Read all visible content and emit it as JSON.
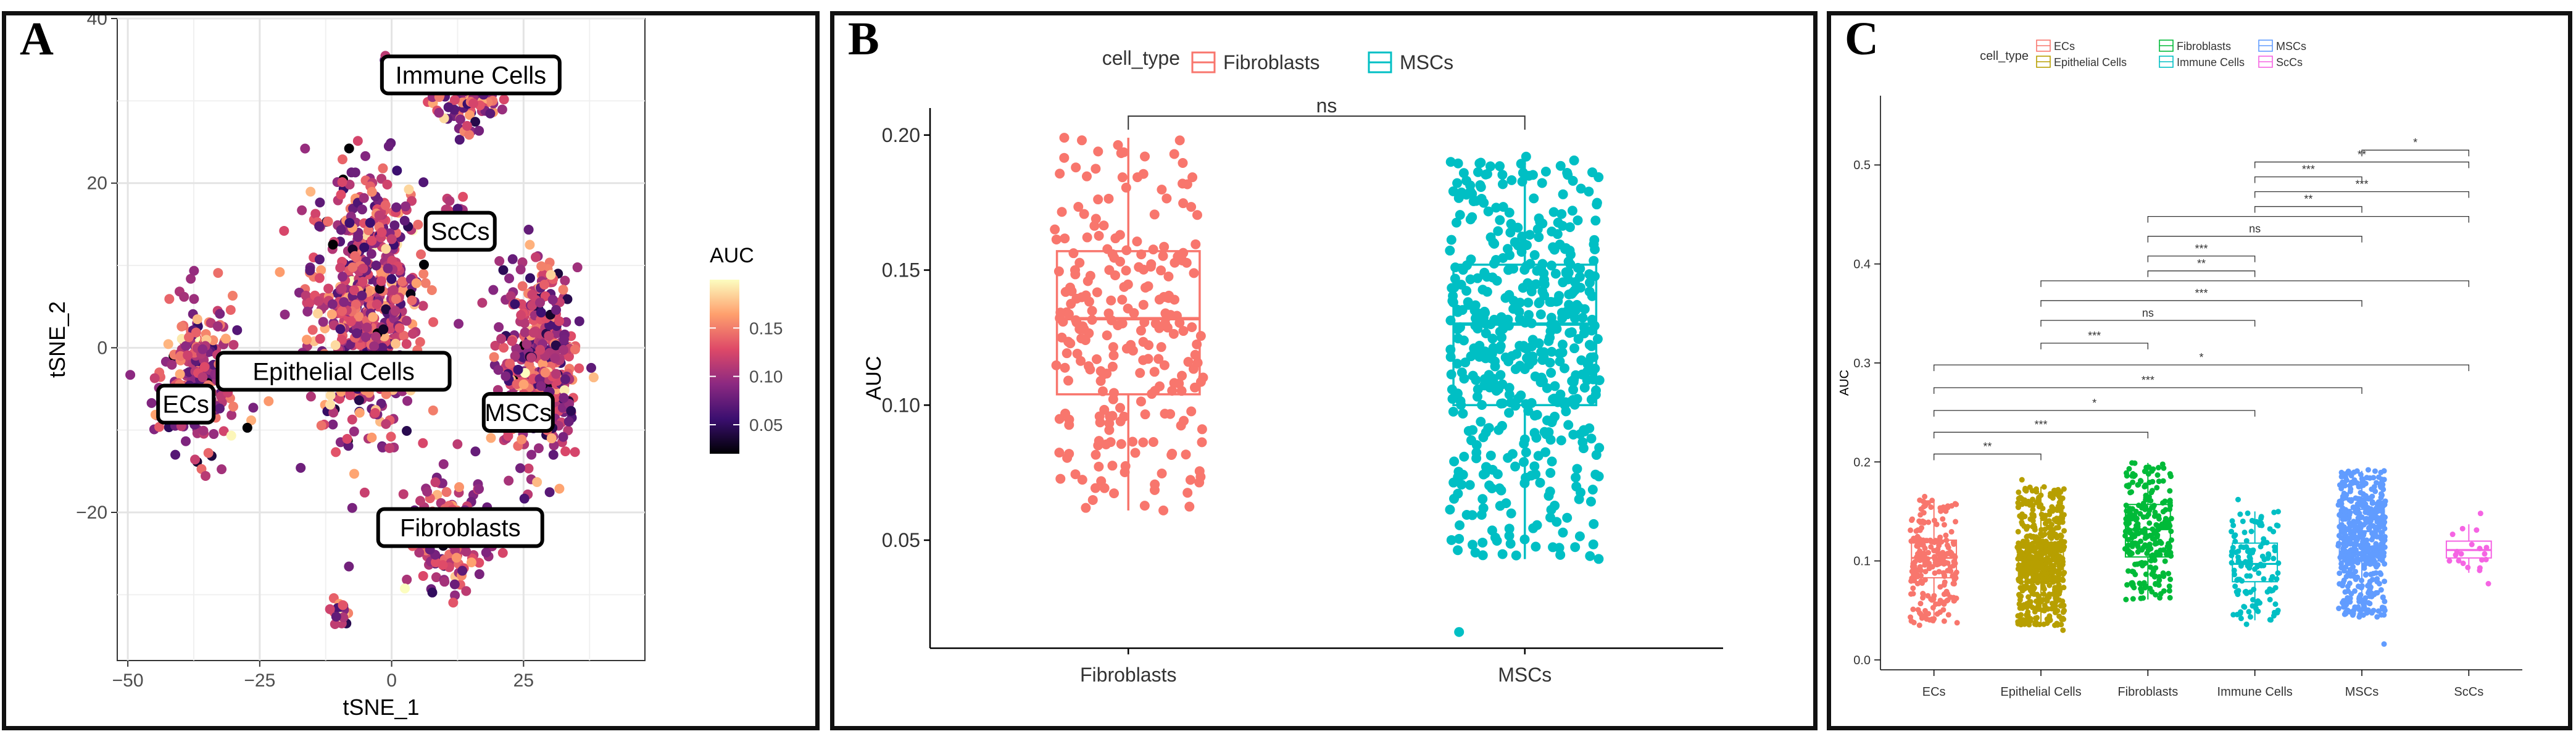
{
  "panels": {
    "a": {
      "letter": "A"
    },
    "b": {
      "letter": "B"
    },
    "c": {
      "letter": "C"
    }
  },
  "chart_data": [
    {
      "id": "A",
      "type": "scatter",
      "title": "",
      "xlabel": "tSNE_1",
      "ylabel": "tSNE_2",
      "xlim": [
        -52,
        48
      ],
      "ylim": [
        -38,
        40
      ],
      "xticks": [
        -50,
        -25,
        0,
        25
      ],
      "yticks": [
        -20,
        0,
        20,
        40
      ],
      "grid": true,
      "legend": {
        "title": "AUC",
        "ticks": [
          0.05,
          0.1,
          0.15
        ],
        "tick_labels": [
          "0.05",
          "0.10",
          "0.15"
        ],
        "placement": "right"
      },
      "colorscale": [
        "#000004",
        "#3b0f70",
        "#8c2981",
        "#de4968",
        "#fe9f6d",
        "#fcfdbf"
      ],
      "clusters": [
        {
          "label": "Immune Cells",
          "center": [
            14,
            30
          ],
          "spread": [
            8,
            4
          ],
          "n": 90,
          "label_at": [
            15,
            33
          ]
        },
        {
          "label": "ScCs",
          "center": [
            12,
            16
          ],
          "spread": [
            3,
            4
          ],
          "n": 20,
          "label_at": [
            13,
            14
          ]
        },
        {
          "label": "Epithelial Cells",
          "center": [
            -5,
            6
          ],
          "spread": [
            12,
            18
          ],
          "n": 600,
          "label_at": [
            -11,
            -3
          ]
        },
        {
          "label": "ECs",
          "center": [
            -36,
            -4
          ],
          "spread": [
            8,
            10
          ],
          "n": 230,
          "label_at": [
            -39,
            -7
          ]
        },
        {
          "label": "MSCs",
          "center": [
            28,
            -2
          ],
          "spread": [
            8,
            13
          ],
          "n": 420,
          "label_at": [
            24,
            -8
          ]
        },
        {
          "label": "Fibroblasts",
          "center": [
            11,
            -23
          ],
          "spread": [
            9,
            7
          ],
          "n": 170,
          "label_at": [
            13,
            -22
          ]
        },
        {
          "label": "",
          "center": [
            -10,
            -32
          ],
          "spread": [
            2,
            2
          ],
          "n": 25,
          "label_at": null
        },
        {
          "label": "",
          "center": [
            -1,
            35
          ],
          "spread": [
            1,
            1
          ],
          "n": 3,
          "label_at": null
        }
      ]
    },
    {
      "id": "B",
      "type": "box",
      "xlabel": "",
      "ylabel": "AUC",
      "ylim": [
        0.01,
        0.21
      ],
      "yticks": [
        0.05,
        0.1,
        0.15,
        0.2
      ],
      "ytick_labels": [
        "0.05",
        "0.10",
        "0.15",
        "0.20"
      ],
      "legend": {
        "title": "cell_type",
        "placement": "top"
      },
      "categories": [
        "Fibroblasts",
        "MSCs"
      ],
      "series": [
        {
          "name": "Fibroblasts",
          "color": "#F8766D",
          "q1": 0.104,
          "median": 0.132,
          "q3": 0.157,
          "whisker_low": 0.061,
          "whisker_high": 0.199,
          "min": 0.061,
          "max": 0.199,
          "n": 250
        },
        {
          "name": "MSCs",
          "color": "#00BFC4",
          "q1": 0.1,
          "median": 0.13,
          "q3": 0.152,
          "whisker_low": 0.043,
          "whisker_high": 0.191,
          "min": 0.016,
          "max": 0.192,
          "n": 520
        }
      ],
      "significance": [
        {
          "from": "Fibroblasts",
          "to": "MSCs",
          "label": "ns",
          "y": 0.207
        }
      ]
    },
    {
      "id": "C",
      "type": "box",
      "xlabel": "",
      "ylabel": "AUC",
      "ylim": [
        -0.01,
        0.57
      ],
      "yticks": [
        0.0,
        0.1,
        0.2,
        0.3,
        0.4,
        0.5
      ],
      "ytick_labels": [
        "0.0",
        "0.1",
        "0.2",
        "0.3",
        "0.4",
        "0.5"
      ],
      "legend": {
        "title": "cell_type",
        "placement": "top"
      },
      "categories": [
        "ECs",
        "Epithelial Cells",
        "Fibroblasts",
        "Immune Cells",
        "MSCs",
        "ScCs"
      ],
      "series": [
        {
          "name": "ECs",
          "color": "#F8766D",
          "q1": 0.083,
          "median": 0.103,
          "q3": 0.121,
          "whisker_low": 0.037,
          "whisker_high": 0.162,
          "min": 0.035,
          "max": 0.165,
          "n": 230
        },
        {
          "name": "Epithelial Cells",
          "color": "#B79F00",
          "q1": 0.079,
          "median": 0.097,
          "q3": 0.118,
          "whisker_low": 0.035,
          "whisker_high": 0.175,
          "min": 0.03,
          "max": 0.182,
          "n": 600
        },
        {
          "name": "Fibroblasts",
          "color": "#00BA38",
          "q1": 0.104,
          "median": 0.132,
          "q3": 0.157,
          "whisker_low": 0.061,
          "whisker_high": 0.199,
          "min": 0.061,
          "max": 0.199,
          "n": 250
        },
        {
          "name": "Immune Cells",
          "color": "#00BFC4",
          "q1": 0.079,
          "median": 0.097,
          "q3": 0.118,
          "whisker_low": 0.04,
          "whisker_high": 0.15,
          "min": 0.036,
          "max": 0.162,
          "n": 130
        },
        {
          "name": "MSCs",
          "color": "#619CFF",
          "q1": 0.1,
          "median": 0.13,
          "q3": 0.152,
          "whisker_low": 0.043,
          "whisker_high": 0.191,
          "min": 0.016,
          "max": 0.192,
          "n": 520
        },
        {
          "name": "ScCs",
          "color": "#F564E3",
          "q1": 0.103,
          "median": 0.111,
          "q3": 0.12,
          "whisker_low": 0.088,
          "whisker_high": 0.137,
          "min": 0.077,
          "max": 0.148,
          "n": 20
        }
      ],
      "significance": [
        {
          "from": "MSCs",
          "to": "ScCs",
          "label": "*",
          "y": 0.515
        },
        {
          "from": "Immune Cells",
          "to": "ScCs",
          "label": "**",
          "y": 0.503
        },
        {
          "from": "Immune Cells",
          "to": "MSCs",
          "label": "***",
          "y": 0.488
        },
        {
          "from": "Immune Cells",
          "to": "ScCs",
          "label": "***",
          "y": 0.473
        },
        {
          "from": "Immune Cells",
          "to": "MSCs",
          "label": "**",
          "y": 0.458
        },
        {
          "from": "Fibroblasts",
          "to": "ScCs",
          "label": "",
          "y": 0.448
        },
        {
          "from": "Fibroblasts",
          "to": "MSCs",
          "label": "ns",
          "y": 0.428
        },
        {
          "from": "Fibroblasts",
          "to": "Immune Cells",
          "label": "***",
          "y": 0.408
        },
        {
          "from": "Fibroblasts",
          "to": "Immune Cells",
          "label": "**",
          "y": 0.393
        },
        {
          "from": "Epithelial Cells",
          "to": "ScCs",
          "label": "",
          "y": 0.383
        },
        {
          "from": "Epithelial Cells",
          "to": "MSCs",
          "label": "***",
          "y": 0.363
        },
        {
          "from": "Epithelial Cells",
          "to": "Immune Cells",
          "label": "ns",
          "y": 0.343
        },
        {
          "from": "Epithelial Cells",
          "to": "Fibroblasts",
          "label": "***",
          "y": 0.32
        },
        {
          "from": "ECs",
          "to": "ScCs",
          "label": "*",
          "y": 0.298
        },
        {
          "from": "ECs",
          "to": "MSCs",
          "label": "***",
          "y": 0.275
        },
        {
          "from": "ECs",
          "to": "Immune Cells",
          "label": "*",
          "y": 0.252
        },
        {
          "from": "ECs",
          "to": "Fibroblasts",
          "label": "***",
          "y": 0.23
        },
        {
          "from": "ECs",
          "to": "Epithelial Cells",
          "label": "**",
          "y": 0.208
        }
      ]
    }
  ]
}
